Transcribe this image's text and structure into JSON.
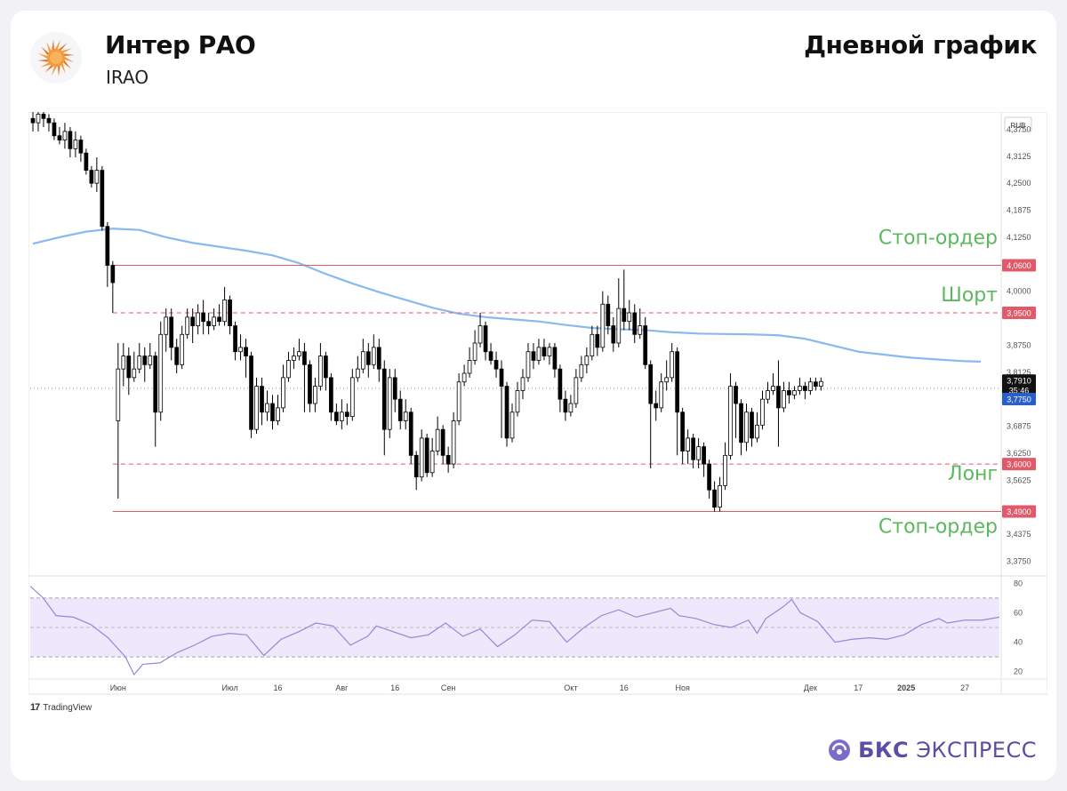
{
  "header": {
    "company": "Интер РАО",
    "ticker": "IRAO",
    "timeframe": "Дневной график"
  },
  "footer": {
    "tradingview": "TradingView",
    "brand_bold": "БКС",
    "brand_rest": "ЭКСПРЕСС"
  },
  "colors": {
    "up": "#ffffff",
    "down": "#000000",
    "ma": "#8ab8f0",
    "level_red": "#e05a6a",
    "label_green": "#5cb85c",
    "rsi_band": "#ede8fb",
    "rsi_line": "#9a86d8",
    "brand": "#5a4ea6"
  },
  "chart_data": {
    "type": "candlestick",
    "currency": "RUB",
    "price_ticks": [
      "4,3750",
      "4,3125",
      "4,2500",
      "4,1875",
      "4,1250",
      "4,0000",
      "3,8750",
      "3,8125",
      "3,6875",
      "3,6250",
      "3,5625",
      "3,4375",
      "3,3750"
    ],
    "price_range": [
      3.345,
      4.415
    ],
    "x_labels": [
      "Июн",
      "Июл",
      "16",
      "Авг",
      "16",
      "Сен",
      "Окт",
      "16",
      "Ноя",
      "Дек",
      "17",
      "2025",
      "27"
    ],
    "x_label_index": [
      16,
      37,
      46,
      58,
      68,
      78,
      101,
      111,
      122,
      146,
      155,
      164,
      175
    ],
    "bars_total": 182,
    "levels": [
      {
        "price": 4.06,
        "label": "4,0600",
        "style": "solid",
        "note": "Стоп-ордер"
      },
      {
        "price": 3.95,
        "label": "3,9500",
        "style": "dashed",
        "note": "Шорт"
      },
      {
        "price": 3.6,
        "label": "3,6000",
        "style": "dashed",
        "note": "Лонг"
      },
      {
        "price": 3.49,
        "label": "3,4900",
        "style": "solid",
        "note": "Стоп-ордер"
      }
    ],
    "current_price": {
      "price": 3.791,
      "label": "3,7910",
      "countdown": "35:46"
    },
    "reference_price": {
      "price": 3.775,
      "label": "3,7750"
    },
    "ma_points": [
      [
        0,
        4.11
      ],
      [
        5,
        4.125
      ],
      [
        10,
        4.138
      ],
      [
        15,
        4.145
      ],
      [
        20,
        4.142
      ],
      [
        25,
        4.125
      ],
      [
        30,
        4.112
      ],
      [
        35,
        4.103
      ],
      [
        40,
        4.094
      ],
      [
        45,
        4.083
      ],
      [
        50,
        4.065
      ],
      [
        55,
        4.04
      ],
      [
        60,
        4.018
      ],
      [
        65,
        3.998
      ],
      [
        70,
        3.98
      ],
      [
        75,
        3.962
      ],
      [
        80,
        3.948
      ],
      [
        85,
        3.94
      ],
      [
        90,
        3.935
      ],
      [
        95,
        3.93
      ],
      [
        100,
        3.922
      ],
      [
        105,
        3.915
      ],
      [
        110,
        3.912
      ],
      [
        115,
        3.91
      ],
      [
        120,
        3.905
      ],
      [
        125,
        3.902
      ],
      [
        130,
        3.901
      ],
      [
        135,
        3.9
      ],
      [
        140,
        3.898
      ],
      [
        145,
        3.89
      ],
      [
        150,
        3.875
      ],
      [
        155,
        3.86
      ],
      [
        160,
        3.853
      ],
      [
        165,
        3.846
      ],
      [
        170,
        3.842
      ],
      [
        175,
        3.838
      ],
      [
        178,
        3.837
      ]
    ],
    "candles": [
      [
        4.4,
        4.39,
        4.42,
        4.37
      ],
      [
        4.39,
        4.41,
        4.43,
        4.37
      ],
      [
        4.41,
        4.4,
        4.42,
        4.38
      ],
      [
        4.4,
        4.39,
        4.41,
        4.37
      ],
      [
        4.39,
        4.36,
        4.4,
        4.35
      ],
      [
        4.36,
        4.35,
        4.38,
        4.34
      ],
      [
        4.35,
        4.37,
        4.39,
        4.33
      ],
      [
        4.37,
        4.33,
        4.38,
        4.31
      ],
      [
        4.33,
        4.35,
        4.37,
        4.31
      ],
      [
        4.35,
        4.32,
        4.36,
        4.3
      ],
      [
        4.32,
        4.28,
        4.33,
        4.27
      ],
      [
        4.28,
        4.25,
        4.29,
        4.24
      ],
      [
        4.25,
        4.28,
        4.31,
        4.23
      ],
      [
        4.28,
        4.15,
        4.29,
        4.14
      ],
      [
        4.15,
        4.06,
        4.16,
        4.01
      ],
      [
        4.06,
        4.02,
        4.07,
        3.95
      ],
      [
        3.7,
        3.82,
        3.88,
        3.52
      ],
      [
        3.82,
        3.85,
        3.88,
        3.78
      ],
      [
        3.85,
        3.8,
        3.87,
        3.76
      ],
      [
        3.8,
        3.82,
        3.86,
        3.79
      ],
      [
        3.82,
        3.85,
        3.88,
        3.81
      ],
      [
        3.85,
        3.83,
        3.87,
        3.79
      ],
      [
        3.83,
        3.85,
        3.88,
        3.82
      ],
      [
        3.85,
        3.72,
        3.86,
        3.64
      ],
      [
        3.72,
        3.9,
        3.93,
        3.7
      ],
      [
        3.9,
        3.94,
        3.96,
        3.86
      ],
      [
        3.94,
        3.87,
        3.96,
        3.84
      ],
      [
        3.87,
        3.83,
        3.89,
        3.81
      ],
      [
        3.83,
        3.9,
        3.92,
        3.82
      ],
      [
        3.9,
        3.94,
        3.96,
        3.89
      ],
      [
        3.94,
        3.92,
        3.96,
        3.88
      ],
      [
        3.92,
        3.95,
        3.97,
        3.9
      ],
      [
        3.95,
        3.93,
        3.98,
        3.9
      ],
      [
        3.93,
        3.92,
        3.95,
        3.9
      ],
      [
        3.92,
        3.94,
        3.96,
        3.91
      ],
      [
        3.94,
        3.93,
        3.97,
        3.92
      ],
      [
        3.93,
        3.98,
        4.01,
        3.92
      ],
      [
        3.98,
        3.92,
        3.99,
        3.9
      ],
      [
        3.92,
        3.86,
        3.93,
        3.84
      ],
      [
        3.86,
        3.87,
        3.9,
        3.84
      ],
      [
        3.87,
        3.85,
        3.89,
        3.8
      ],
      [
        3.85,
        3.68,
        3.86,
        3.66
      ],
      [
        3.68,
        3.78,
        3.8,
        3.67
      ],
      [
        3.78,
        3.72,
        3.8,
        3.69
      ],
      [
        3.72,
        3.74,
        3.77,
        3.7
      ],
      [
        3.74,
        3.7,
        3.76,
        3.68
      ],
      [
        3.7,
        3.73,
        3.76,
        3.69
      ],
      [
        3.73,
        3.8,
        3.83,
        3.72
      ],
      [
        3.8,
        3.84,
        3.86,
        3.79
      ],
      [
        3.84,
        3.85,
        3.87,
        3.82
      ],
      [
        3.85,
        3.86,
        3.89,
        3.84
      ],
      [
        3.86,
        3.83,
        3.88,
        3.72
      ],
      [
        3.83,
        3.74,
        3.84,
        3.72
      ],
      [
        3.74,
        3.78,
        3.8,
        3.72
      ],
      [
        3.78,
        3.85,
        3.88,
        3.77
      ],
      [
        3.85,
        3.8,
        3.86,
        3.77
      ],
      [
        3.8,
        3.72,
        3.81,
        3.7
      ],
      [
        3.72,
        3.7,
        3.74,
        3.69
      ],
      [
        3.7,
        3.72,
        3.75,
        3.68
      ],
      [
        3.72,
        3.71,
        3.74,
        3.69
      ],
      [
        3.71,
        3.8,
        3.82,
        3.7
      ],
      [
        3.8,
        3.82,
        3.85,
        3.79
      ],
      [
        3.82,
        3.86,
        3.89,
        3.81
      ],
      [
        3.86,
        3.83,
        3.88,
        3.8
      ],
      [
        3.83,
        3.87,
        3.9,
        3.82
      ],
      [
        3.87,
        3.82,
        3.89,
        3.79
      ],
      [
        3.82,
        3.68,
        3.84,
        3.62
      ],
      [
        3.68,
        3.8,
        3.82,
        3.66
      ],
      [
        3.8,
        3.75,
        3.82,
        3.72
      ],
      [
        3.75,
        3.7,
        3.77,
        3.68
      ],
      [
        3.7,
        3.72,
        3.75,
        3.68
      ],
      [
        3.72,
        3.62,
        3.73,
        3.6
      ],
      [
        3.62,
        3.57,
        3.63,
        3.54
      ],
      [
        3.57,
        3.66,
        3.68,
        3.56
      ],
      [
        3.66,
        3.58,
        3.67,
        3.57
      ],
      [
        3.58,
        3.63,
        3.66,
        3.57
      ],
      [
        3.63,
        3.68,
        3.71,
        3.62
      ],
      [
        3.68,
        3.62,
        3.69,
        3.6
      ],
      [
        3.62,
        3.6,
        3.64,
        3.58
      ],
      [
        3.6,
        3.7,
        3.72,
        3.59
      ],
      [
        3.7,
        3.79,
        3.81,
        3.69
      ],
      [
        3.79,
        3.81,
        3.83,
        3.78
      ],
      [
        3.81,
        3.84,
        3.87,
        3.8
      ],
      [
        3.84,
        3.88,
        3.91,
        3.83
      ],
      [
        3.88,
        3.92,
        3.95,
        3.87
      ],
      [
        3.92,
        3.86,
        3.93,
        3.84
      ],
      [
        3.86,
        3.84,
        3.88,
        3.83
      ],
      [
        3.84,
        3.82,
        3.86,
        3.8
      ],
      [
        3.82,
        3.78,
        3.84,
        3.66
      ],
      [
        3.78,
        3.66,
        3.79,
        3.64
      ],
      [
        3.66,
        3.72,
        3.74,
        3.65
      ],
      [
        3.72,
        3.77,
        3.79,
        3.71
      ],
      [
        3.77,
        3.8,
        3.82,
        3.75
      ],
      [
        3.8,
        3.86,
        3.88,
        3.79
      ],
      [
        3.86,
        3.84,
        3.88,
        3.82
      ],
      [
        3.84,
        3.87,
        3.89,
        3.83
      ],
      [
        3.87,
        3.85,
        3.89,
        3.84
      ],
      [
        3.85,
        3.87,
        3.88,
        3.83
      ],
      [
        3.87,
        3.82,
        3.88,
        3.8
      ],
      [
        3.82,
        3.75,
        3.83,
        3.72
      ],
      [
        3.75,
        3.72,
        3.77,
        3.7
      ],
      [
        3.72,
        3.74,
        3.76,
        3.71
      ],
      [
        3.74,
        3.8,
        3.82,
        3.73
      ],
      [
        3.8,
        3.83,
        3.85,
        3.79
      ],
      [
        3.83,
        3.85,
        3.87,
        3.81
      ],
      [
        3.85,
        3.9,
        3.92,
        3.84
      ],
      [
        3.9,
        3.87,
        3.92,
        3.85
      ],
      [
        3.87,
        3.97,
        4.0,
        3.86
      ],
      [
        3.97,
        3.92,
        3.99,
        3.9
      ],
      [
        3.92,
        3.88,
        3.94,
        3.86
      ],
      [
        3.88,
        3.96,
        4.03,
        3.87
      ],
      [
        3.96,
        3.93,
        4.05,
        3.91
      ],
      [
        3.93,
        3.95,
        3.98,
        3.91
      ],
      [
        3.95,
        3.9,
        3.97,
        3.88
      ],
      [
        3.9,
        3.92,
        3.96,
        3.89
      ],
      [
        3.92,
        3.83,
        3.94,
        3.82
      ],
      [
        3.83,
        3.74,
        3.84,
        3.59
      ],
      [
        3.74,
        3.73,
        3.77,
        3.7
      ],
      [
        3.73,
        3.79,
        3.81,
        3.72
      ],
      [
        3.79,
        3.8,
        3.84,
        3.77
      ],
      [
        3.8,
        3.86,
        3.88,
        3.79
      ],
      [
        3.86,
        3.72,
        3.87,
        3.62
      ],
      [
        3.72,
        3.63,
        3.73,
        3.6
      ],
      [
        3.63,
        3.66,
        3.68,
        3.6
      ],
      [
        3.66,
        3.61,
        3.67,
        3.59
      ],
      [
        3.61,
        3.64,
        3.66,
        3.59
      ],
      [
        3.64,
        3.6,
        3.65,
        3.57
      ],
      [
        3.6,
        3.54,
        3.61,
        3.52
      ],
      [
        3.54,
        3.5,
        3.56,
        3.49
      ],
      [
        3.5,
        3.55,
        3.57,
        3.49
      ],
      [
        3.55,
        3.62,
        3.65,
        3.54
      ],
      [
        3.62,
        3.78,
        3.81,
        3.61
      ],
      [
        3.78,
        3.74,
        3.79,
        3.66
      ],
      [
        3.74,
        3.65,
        3.75,
        3.62
      ],
      [
        3.65,
        3.72,
        3.74,
        3.63
      ],
      [
        3.72,
        3.66,
        3.73,
        3.64
      ],
      [
        3.66,
        3.69,
        3.72,
        3.65
      ],
      [
        3.69,
        3.75,
        3.77,
        3.68
      ],
      [
        3.75,
        3.77,
        3.79,
        3.74
      ],
      [
        3.77,
        3.78,
        3.81,
        3.76
      ],
      [
        3.78,
        3.73,
        3.84,
        3.64
      ],
      [
        3.73,
        3.77,
        3.79,
        3.72
      ],
      [
        3.77,
        3.76,
        3.79,
        3.74
      ],
      [
        3.76,
        3.77,
        3.78,
        3.75
      ],
      [
        3.77,
        3.78,
        3.8,
        3.76
      ],
      [
        3.78,
        3.77,
        3.79,
        3.75
      ],
      [
        3.77,
        3.79,
        3.8,
        3.76
      ],
      [
        3.79,
        3.78,
        3.8,
        3.77
      ],
      [
        3.78,
        3.791,
        3.8,
        3.77
      ]
    ],
    "rsi": {
      "ticks": [
        "80",
        "60",
        "40",
        "20"
      ],
      "range": [
        15,
        85
      ],
      "band": [
        30,
        70
      ],
      "mid": 50,
      "points": [
        [
          0,
          78
        ],
        [
          3,
          70
        ],
        [
          6,
          58
        ],
        [
          10,
          57
        ],
        [
          14,
          52
        ],
        [
          18,
          43
        ],
        [
          22,
          30
        ],
        [
          24,
          18
        ],
        [
          26,
          25
        ],
        [
          30,
          26
        ],
        [
          34,
          33
        ],
        [
          38,
          38
        ],
        [
          42,
          44
        ],
        [
          46,
          46
        ],
        [
          50,
          45
        ],
        [
          54,
          31
        ],
        [
          58,
          42
        ],
        [
          62,
          47
        ],
        [
          66,
          53
        ],
        [
          70,
          51
        ],
        [
          74,
          38
        ],
        [
          78,
          44
        ],
        [
          80,
          51
        ],
        [
          84,
          47
        ],
        [
          88,
          43
        ],
        [
          92,
          45
        ],
        [
          96,
          53
        ],
        [
          100,
          44
        ],
        [
          104,
          49
        ],
        [
          108,
          37
        ],
        [
          112,
          45
        ],
        [
          116,
          55
        ],
        [
          120,
          54
        ],
        [
          124,
          40
        ],
        [
          128,
          50
        ],
        [
          132,
          58
        ],
        [
          136,
          62
        ],
        [
          140,
          57
        ],
        [
          144,
          60
        ],
        [
          148,
          63
        ],
        [
          150,
          58
        ],
        [
          154,
          56
        ],
        [
          158,
          52
        ],
        [
          162,
          50
        ],
        [
          166,
          55
        ],
        [
          168,
          46
        ],
        [
          170,
          56
        ],
        [
          174,
          64
        ],
        [
          176,
          69
        ],
        [
          178,
          60
        ],
        [
          182,
          54
        ],
        [
          186,
          40
        ],
        [
          190,
          42
        ],
        [
          194,
          43
        ],
        [
          198,
          42
        ],
        [
          202,
          45
        ],
        [
          206,
          52
        ],
        [
          210,
          56
        ],
        [
          212,
          53
        ],
        [
          216,
          55
        ],
        [
          220,
          55
        ],
        [
          224,
          57
        ]
      ],
      "points_count": 224
    }
  }
}
